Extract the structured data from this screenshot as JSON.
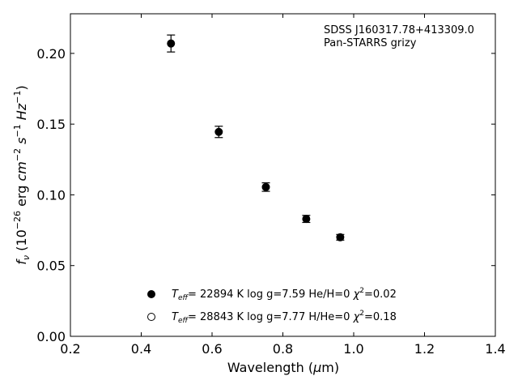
{
  "chart_data": {
    "type": "scatter",
    "annotation": [
      "SDSS J160317.78+413309.0",
      "Pan-STARRS grizy"
    ],
    "xlabel": {
      "main": "Wavelength (",
      "mu": "μ",
      "tail": "m)"
    },
    "ylabel": {
      "f": "f",
      "nu": "ν",
      "open": " (10",
      "exp1": "−26",
      "erg": " erg ",
      "cm": "cm",
      "exp2": "−2",
      "s": " s",
      "exp3": "−1",
      "hz": " Hz",
      "exp4": "−1",
      "close": ")"
    },
    "xlim": [
      0.2,
      1.4
    ],
    "ylim": [
      0.0,
      0.228
    ],
    "xticks": [
      0.2,
      0.4,
      0.6,
      0.8,
      1.0,
      1.2,
      1.4
    ],
    "xtick_labels": [
      "0.2",
      "0.4",
      "0.6",
      "0.8",
      "1.0",
      "1.2",
      "1.4"
    ],
    "yticks": [
      0.0,
      0.05,
      0.1,
      0.15,
      0.2
    ],
    "ytick_labels": [
      "0.00",
      "0.05",
      "0.10",
      "0.15",
      "0.20"
    ],
    "points": [
      {
        "x": 0.484,
        "y": 0.207,
        "err": 0.006
      },
      {
        "x": 0.619,
        "y": 0.1445,
        "err": 0.004
      },
      {
        "x": 0.752,
        "y": 0.1055,
        "err": 0.003
      },
      {
        "x": 0.866,
        "y": 0.083,
        "err": 0.0025
      },
      {
        "x": 0.962,
        "y": 0.07,
        "err": 0.002
      }
    ],
    "legend": [
      {
        "marker": "filled",
        "T": "T",
        "eff": "eff",
        "text": "= 22894 K  log g=7.59  He/H=0  ",
        "chi": "χ",
        "sup": "2",
        "chitail": "=0.02"
      },
      {
        "marker": "open",
        "T": "T",
        "eff": "eff",
        "text": "= 28843 K  log g=7.77  H/He=0  ",
        "chi": "χ",
        "sup": "2",
        "chitail": "=0.18"
      }
    ],
    "marker_color": "#000000",
    "grid": false
  }
}
